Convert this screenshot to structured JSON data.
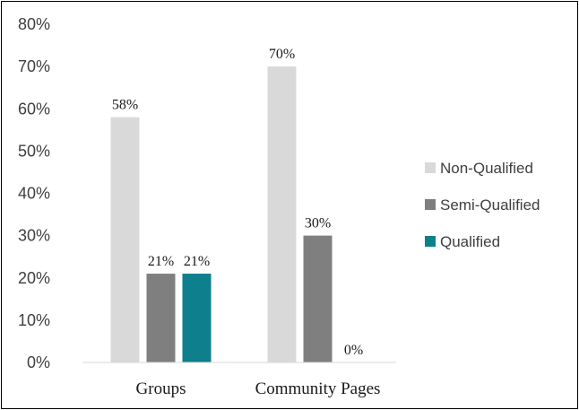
{
  "chart_data": {
    "type": "bar",
    "categories": [
      "Groups",
      "Community Pages"
    ],
    "series": [
      {
        "name": "Non-Qualified",
        "values": [
          58,
          70
        ],
        "labels": [
          "58%",
          "70%"
        ],
        "color": "#d9d9d9"
      },
      {
        "name": "Semi-Qualified",
        "values": [
          21,
          30
        ],
        "labels": [
          "21%",
          "30%"
        ],
        "color": "#7f7f7f"
      },
      {
        "name": "Qualified",
        "values": [
          21,
          0
        ],
        "labels": [
          "21%",
          "0%"
        ],
        "color": "#0e7f8c"
      }
    ],
    "yticks": [
      "0%",
      "10%",
      "20%",
      "30%",
      "40%",
      "50%",
      "60%",
      "70%",
      "80%"
    ],
    "ylim": [
      0,
      80
    ],
    "grid": false,
    "legend_position": "right"
  }
}
